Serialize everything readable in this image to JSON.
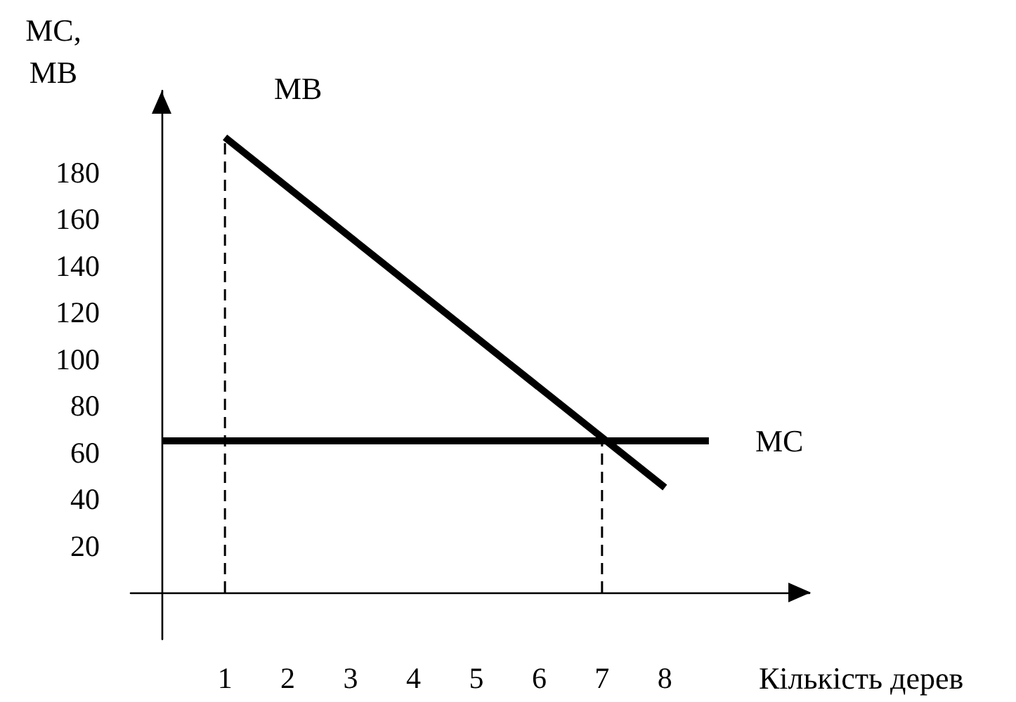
{
  "chart_data": {
    "type": "line",
    "xlabel": "Кількість дерев",
    "ylabel": "MC, MB",
    "xlim": [
      -0.5,
      10.3
    ],
    "ylim": [
      -20,
      215
    ],
    "xticks": [
      1,
      2,
      3,
      4,
      5,
      6,
      7,
      8
    ],
    "yticks": [
      20,
      40,
      60,
      80,
      100,
      120,
      140,
      160,
      180
    ],
    "grid": false,
    "legend": false,
    "marker": "none",
    "line_style": "solid",
    "series": [
      {
        "name": "MB",
        "color": "#000000",
        "x": [
          1,
          8
        ],
        "values": [
          195,
          45
        ]
      },
      {
        "name": "MC",
        "color": "#000000",
        "x": [
          0,
          8.7
        ],
        "values": [
          65,
          65
        ]
      },
      {
        "color": "#000000",
        "x": [
          1,
          1
        ],
        "values": [
          0,
          195
        ],
        "line_style": "dashed"
      },
      {
        "color": "#000000",
        "x": [
          7,
          7
        ],
        "values": [
          0,
          65
        ],
        "line_style": "dashed"
      }
    ]
  }
}
